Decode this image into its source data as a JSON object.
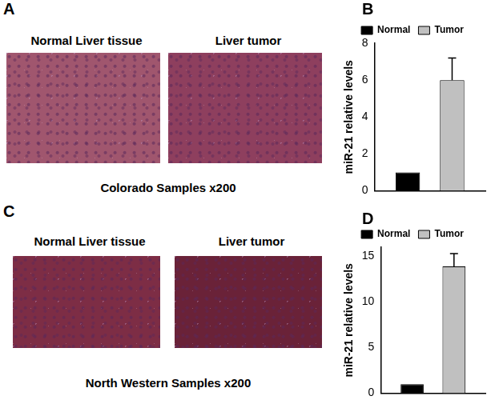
{
  "panels": [
    {
      "label": "A",
      "images": [
        "Normal Liver tissue",
        "Liver tumor"
      ],
      "caption": "Colorado Samples x200"
    },
    {
      "label": "C",
      "images": [
        "Normal Liver tissue",
        "Liver tumor"
      ],
      "caption": "North Western Samples x200"
    }
  ],
  "chart_data": [
    {
      "panel_label": "B",
      "type": "bar",
      "y_label": "miR-21 relative levels",
      "categories": [
        null
      ],
      "series": [
        {
          "name": "Normal",
          "color": "#000000",
          "values": [
            1
          ]
        },
        {
          "name": "Tumor",
          "color": "#c0c0c0",
          "values": [
            6
          ],
          "errors": [
            1.2
          ]
        }
      ],
      "ylim": [
        0,
        8
      ],
      "yticks": [
        0,
        2,
        4,
        6,
        8
      ],
      "grid": false,
      "legend": "top",
      "tick_labels": "y"
    },
    {
      "panel_label": "D",
      "type": "bar",
      "y_label": "miR-21 relative levels",
      "categories": [
        null
      ],
      "series": [
        {
          "name": "Normal",
          "color": "#000000",
          "values": [
            1
          ]
        },
        {
          "name": "Tumor",
          "color": "#c0c0c0",
          "values": [
            13.9
          ],
          "errors": [
            1.4
          ]
        }
      ],
      "ylim": [
        0,
        16
      ],
      "yticks": [
        0,
        5,
        10,
        15
      ],
      "grid": false,
      "legend": "top",
      "tick_labels": "y"
    }
  ]
}
